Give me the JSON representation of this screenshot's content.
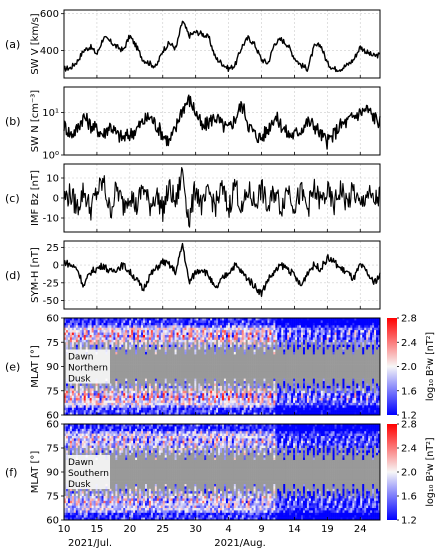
{
  "chart_data": [
    {
      "type": "line",
      "panel_label": "(a)",
      "ylabel": "SW V [km/s]",
      "yticks": [
        "400",
        "600"
      ],
      "ylim": [
        250,
        620
      ],
      "x_day": [
        0,
        1,
        2,
        3,
        4,
        5,
        6,
        7,
        8,
        9,
        10,
        11,
        12,
        13,
        14,
        15,
        16,
        17,
        18,
        19,
        20,
        21,
        22,
        23,
        24,
        25,
        26,
        27,
        28,
        29,
        30,
        31,
        32,
        33,
        34,
        35,
        36,
        37,
        38,
        39,
        40,
        41,
        42,
        43,
        44,
        45,
        46,
        47,
        48
      ],
      "values": [
        300,
        305,
        340,
        400,
        420,
        380,
        470,
        450,
        420,
        400,
        480,
        420,
        350,
        330,
        310,
        400,
        440,
        410,
        560,
        480,
        500,
        490,
        470,
        360,
        330,
        300,
        320,
        420,
        470,
        430,
        350,
        330,
        440,
        460,
        430,
        360,
        320,
        300,
        420,
        430,
        330,
        300,
        300,
        320,
        350,
        420,
        390,
        370,
        375
      ]
    },
    {
      "type": "line",
      "panel_label": "(b)",
      "ylabel": "SW N [cm⁻³]",
      "yscale": "log",
      "yticks": [
        "10⁰",
        "10¹"
      ],
      "ylim": [
        1,
        40
      ],
      "x_day": [
        0,
        1,
        2,
        3,
        4,
        5,
        6,
        7,
        8,
        9,
        10,
        11,
        12,
        13,
        14,
        15,
        16,
        17,
        18,
        19,
        20,
        21,
        22,
        23,
        24,
        25,
        26,
        27,
        28,
        29,
        30,
        31,
        32,
        33,
        34,
        35,
        36,
        37,
        38,
        39,
        40,
        41,
        42,
        43,
        44,
        45,
        46,
        47,
        48
      ],
      "values": [
        5,
        3,
        4,
        8,
        5,
        4,
        3,
        5,
        3,
        2.5,
        3,
        4,
        6,
        8,
        5,
        3,
        2,
        4,
        12,
        20,
        10,
        4,
        6,
        8,
        5,
        4,
        7,
        15,
        5,
        3,
        2.5,
        4,
        8,
        5,
        3,
        3,
        4,
        6,
        5,
        3,
        2,
        3,
        5,
        6,
        8,
        10,
        12,
        8,
        6
      ]
    },
    {
      "type": "line",
      "panel_label": "(c)",
      "ylabel": "IMF Bz [nT]",
      "yticks": [
        "-10",
        "0",
        "10"
      ],
      "ylim": [
        -17,
        17
      ],
      "x_day": [
        0,
        1,
        2,
        3,
        4,
        5,
        6,
        7,
        8,
        9,
        10,
        11,
        12,
        13,
        14,
        15,
        16,
        17,
        18,
        19,
        20,
        21,
        22,
        23,
        24,
        25,
        26,
        27,
        28,
        29,
        30,
        31,
        32,
        33,
        34,
        35,
        36,
        37,
        38,
        39,
        40,
        41,
        42,
        43,
        44,
        45,
        46,
        47,
        48
      ],
      "values": [
        0,
        2,
        -5,
        4,
        -6,
        3,
        8,
        -7,
        5,
        -4,
        3,
        -5,
        6,
        -4,
        2,
        -6,
        5,
        -3,
        14,
        -12,
        6,
        -5,
        3,
        -4,
        5,
        -6,
        8,
        -7,
        4,
        -3,
        5,
        -6,
        4,
        -5,
        6,
        -4,
        3,
        -5,
        4,
        -2,
        3,
        -4,
        5,
        -3,
        4,
        -5,
        3,
        -2,
        1
      ]
    },
    {
      "type": "line",
      "panel_label": "(d)",
      "ylabel": "SYM-H [nT]",
      "yticks": [
        "25",
        "0",
        "-25",
        "-50"
      ],
      "ylim": [
        -62,
        34
      ],
      "x_day": [
        0,
        1,
        2,
        3,
        4,
        5,
        6,
        7,
        8,
        9,
        10,
        11,
        12,
        13,
        14,
        15,
        16,
        17,
        18,
        19,
        20,
        21,
        22,
        23,
        24,
        25,
        26,
        27,
        28,
        29,
        30,
        31,
        32,
        33,
        34,
        35,
        36,
        37,
        38,
        39,
        40,
        41,
        42,
        43,
        44,
        45,
        46,
        47,
        48
      ],
      "values": [
        5,
        0,
        -5,
        -30,
        -10,
        -5,
        0,
        -10,
        -5,
        0,
        -10,
        -20,
        -35,
        -15,
        -5,
        5,
        0,
        -10,
        30,
        -25,
        -10,
        -5,
        -15,
        -35,
        -20,
        -10,
        0,
        -10,
        -20,
        -30,
        -40,
        -20,
        -10,
        0,
        -5,
        -15,
        -30,
        -10,
        0,
        -5,
        10,
        5,
        -5,
        -10,
        -20,
        0,
        -10,
        -25,
        -15
      ]
    },
    {
      "type": "heatmap",
      "panel_label": "(e)",
      "ylabel": "MLAT [°]",
      "yticks": [
        "60",
        "75",
        "90",
        "75",
        "60"
      ],
      "text_labels": [
        "Dawn",
        "Northern",
        "Dusk"
      ],
      "colorbar": {
        "label": "log₁₀ B²w [nT²]",
        "ticks": [
          "2.8",
          "2.4",
          "2.0",
          "1.6",
          "1.2"
        ],
        "range": [
          1.2,
          2.8
        ]
      },
      "note": "Red activity enhancement near 70–80° MLAT; gray gaps around noon/midnight; bluer intervals after Aug 11"
    },
    {
      "type": "heatmap",
      "panel_label": "(f)",
      "ylabel": "MLAT [°]",
      "yticks": [
        "60",
        "75",
        "90",
        "75",
        "60"
      ],
      "text_labels": [
        "Dawn",
        "Southern",
        "Dusk"
      ],
      "colorbar": {
        "label": "log₁₀ B²w [nT²]",
        "ticks": [
          "2.8",
          "2.4",
          "2.0",
          "1.6",
          "1.2"
        ],
        "range": [
          1.2,
          2.8
        ]
      },
      "note": "Weaker red activity than (e); bluer after Aug 11"
    }
  ],
  "x_axis": {
    "tick_labels": [
      "10",
      "15",
      "20",
      "25",
      "30",
      "4",
      "9",
      "14",
      "19",
      "24"
    ],
    "tick_day_index": [
      0,
      5,
      10,
      15,
      20,
      25,
      30,
      35,
      40,
      45
    ],
    "month_labels": [
      "2021/Jul.",
      "2021/Aug."
    ]
  },
  "colors": {
    "line": "#000000",
    "gap": "#999999",
    "high": "#ff0000",
    "mid": "#f7f7f7",
    "low": "#0000ff"
  }
}
